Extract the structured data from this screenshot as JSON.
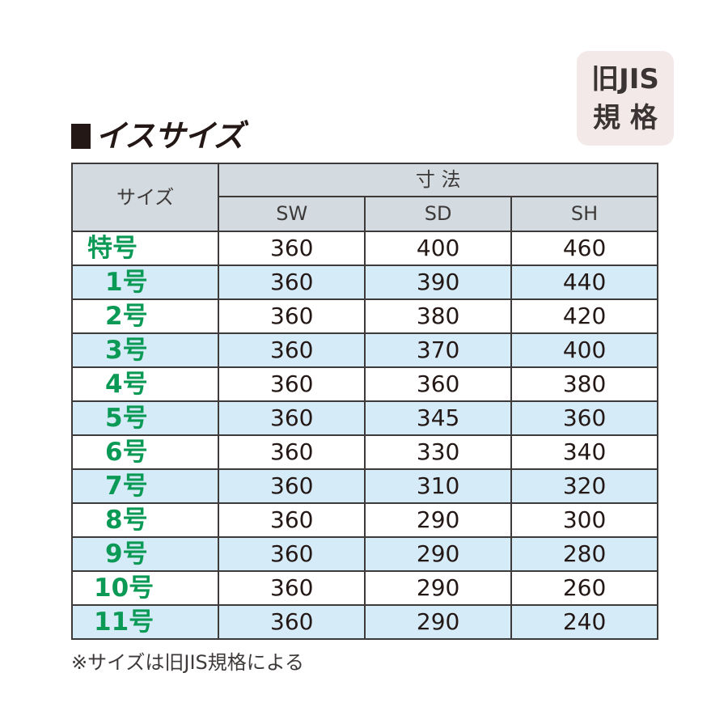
{
  "badge": {
    "line1": "旧JIS",
    "line2": "規 格"
  },
  "title": "イスサイズ",
  "table": {
    "size_header": "サイズ",
    "group_header": "寸 法",
    "columns": [
      "SW",
      "SD",
      "SH"
    ],
    "rows": [
      {
        "label": "特号",
        "values": [
          "360",
          "400",
          "460"
        ]
      },
      {
        "label": "1号",
        "values": [
          "360",
          "390",
          "440"
        ]
      },
      {
        "label": "2号",
        "values": [
          "360",
          "380",
          "420"
        ]
      },
      {
        "label": "3号",
        "values": [
          "360",
          "370",
          "400"
        ]
      },
      {
        "label": "4号",
        "values": [
          "360",
          "360",
          "380"
        ]
      },
      {
        "label": "5号",
        "values": [
          "360",
          "345",
          "360"
        ]
      },
      {
        "label": "6号",
        "values": [
          "360",
          "330",
          "340"
        ]
      },
      {
        "label": "7号",
        "values": [
          "360",
          "310",
          "320"
        ]
      },
      {
        "label": "8号",
        "values": [
          "360",
          "290",
          "300"
        ]
      },
      {
        "label": "9号",
        "values": [
          "360",
          "290",
          "280"
        ]
      },
      {
        "label": "10号",
        "values": [
          "360",
          "290",
          "260"
        ]
      },
      {
        "label": "11号",
        "values": [
          "360",
          "290",
          "240"
        ]
      }
    ]
  },
  "note": "※サイズは旧JIS規格による",
  "colors": {
    "label_green": "#0a9a55",
    "header_gray": "#d3dbe0",
    "stripe_blue": "#d6ebf8",
    "badge_pink": "#f4e9e9"
  }
}
